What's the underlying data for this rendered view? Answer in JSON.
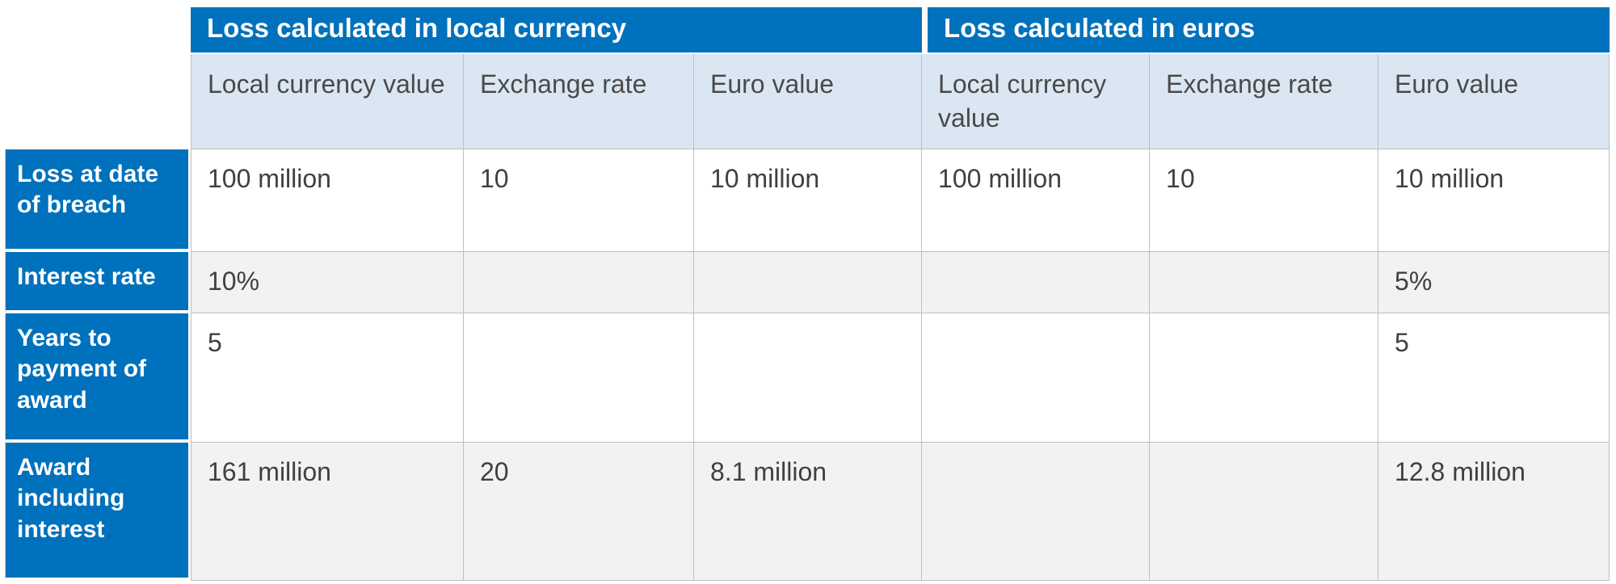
{
  "table": {
    "groups": [
      {
        "label": "Loss calculated in local currency",
        "columns": [
          "Local currency value",
          "Exchange rate",
          "Euro value"
        ]
      },
      {
        "label": "Loss calculated in euros",
        "columns": [
          "Local currency value",
          "Exchange rate",
          "Euro value"
        ]
      }
    ],
    "rows": [
      {
        "label": "Loss at date of breach",
        "cells": [
          "100 million",
          "10",
          "10 million",
          "100 million",
          "10",
          "10 million"
        ]
      },
      {
        "label": "Interest rate",
        "cells": [
          "10%",
          "",
          "",
          "",
          "",
          "5%"
        ]
      },
      {
        "label": "Years to payment of award",
        "cells": [
          "5",
          "",
          "",
          "",
          "",
          "5"
        ]
      },
      {
        "label": "Award including interest",
        "cells": [
          "161 million",
          "20",
          "8.1 million",
          "",
          "",
          "12.8 million"
        ]
      }
    ],
    "colors": {
      "group_header_bg": "#0071BC",
      "column_header_bg": "#DAE7F3",
      "row_label_bg": "#0071BC",
      "alt_row_bg": "#F2F2F2",
      "border": "#BFBFBF",
      "text": "#404040",
      "header_text": "#FFFFFF"
    }
  }
}
